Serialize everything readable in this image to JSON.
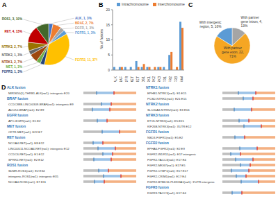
{
  "chart_data": [
    {
      "type": "pie",
      "panel_label": "A",
      "categories": [
        "ALK",
        "BRAF",
        "EGFR",
        "FGFR1",
        "FGFR2",
        "FGFR3",
        "MET",
        "NTRK1",
        "NTRK2",
        "NTRK3",
        "RET",
        "ROS1"
      ],
      "values": [
        1,
        2,
        1,
        1,
        11,
        1,
        1,
        2,
        1,
        2,
        4,
        3
      ],
      "value_labels": [
        "ALK, 1, 3%",
        "BRAF, 2, 7%",
        "EGFR, 1, 3%",
        "FGFR1, 1, 3%",
        "FGFR2, 11, 37%",
        "FGFR3, 1, 3%",
        "MET, 1, 3%",
        "NTRK1, 2, 7%",
        "NTRK2, 1, 3%",
        "NTRK3, 2, 7%",
        "RET, 4, 13%",
        "ROS1, 3, 10%"
      ],
      "colors": [
        "#4472C4",
        "#ED7D31",
        "#A5A5A5",
        "#5B9BD5",
        "#FFC000",
        "#264478",
        "#70AD47",
        "#9E480E",
        "#636363",
        "#997300",
        "#C00000",
        "#43682B"
      ],
      "data_labels": true
    },
    {
      "type": "bar",
      "panel_label": "B",
      "ylabel": "No.of fusions",
      "categories": [
        "ALK",
        "BRAF",
        "EGFR",
        "MET",
        "RET",
        "ROS1",
        "NTRK1",
        "NTRK2",
        "NTRK3",
        "FGFR1",
        "FGFR2",
        "FGFR3",
        "Total"
      ],
      "series": [
        {
          "name": "Intrachromosome",
          "color": "#5B9BD5",
          "values": [
            1,
            1,
            1,
            1,
            3,
            1,
            1,
            0,
            1,
            1,
            5,
            0,
            16
          ]
        },
        {
          "name": "Interchromosome",
          "color": "#ED7D31",
          "values": [
            0,
            1,
            0,
            0,
            1,
            2,
            1,
            1,
            1,
            0,
            6,
            1,
            14
          ]
        }
      ],
      "ylim": [
        0,
        20
      ],
      "yticks": [
        0,
        5,
        10,
        15,
        20
      ],
      "legend": "top",
      "grid": false
    },
    {
      "type": "pie",
      "panel_label": "C",
      "categories": [
        "With partner gene intron",
        "With partner gene exon",
        "With intergenic region"
      ],
      "values": [
        4,
        22,
        5
      ],
      "value_labels": [
        "With partner gene intron, 4, 13%",
        "With partner gene exon, 22, 71%",
        "With intergenic region, 5, 16%"
      ],
      "colors": [
        "#A5A5A5",
        "#F5A623",
        "#5B9BD5"
      ],
      "data_labels": true
    }
  ],
  "fusion_diagram": {
    "panel_label": "D",
    "columns": [
      [
        {
          "heading": "ALK fusion",
          "entries": [
            "MIR3650(1)-THRB1-ALK(n=1): intergenic:E20"
          ]
        },
        {
          "heading": "BRAF fusion",
          "entries": [
            "CCDC88B-LINC00309-BRAF(n=1): intergenic:E9",
            "ADCK2-BRAF(n=1): E2:E9"
          ]
        },
        {
          "heading": "EGFR fusion",
          "entries": [
            "APC-EGFR(n=1): E1:E2"
          ]
        },
        {
          "heading": "MET fusion",
          "entries": [
            "CFTR-MET(n=1): E22:E7"
          ]
        },
        {
          "heading": "RET fusion",
          "entries": [
            "NCOA4-RET(n=1): E8:E12",
            "LINC00511-NCOA4-RET(n=1): intergenic:E12",
            "CCDC6-RET(n=1): E1:E12",
            "SPRR2-RET(n=1): E2:E12"
          ]
        },
        {
          "heading": "ROS1 fusion",
          "entries": [
            "SDMR-ROS1(n=1): E2:E34",
            "intergenic-ROS1(n=1): intergenic:E35",
            "NCOA4-ROS1(n=1): E7:E11"
          ]
        }
      ],
      [
        {
          "heading": "NTRK1 fusion",
          "entries": [
            "EPHB1-NTRK1(n=1): E1:E15",
            "PCSD-NTRK1(n=1): E21:E15"
          ]
        },
        {
          "heading": "NTRK2 fusion",
          "entries": [
            "SLC30A3-NTRK2(n=1): E3:E16"
          ]
        },
        {
          "heading": "NTRK3 fusion",
          "entries": [
            "ETV6-NTRK3(n=1): E5:E15",
            "KIF26B-NTRK3(n=1): 3'UTR:E12"
          ]
        },
        {
          "heading": "FGFR1 fusion",
          "entries": [
            "NSD3-FGFR1(n=1): E5:E2"
          ]
        },
        {
          "heading": "FGFR2 fusion",
          "entries": [
            "EPHA6-FGFR2(n=1): E2:E9",
            "FGFR2-WDR11(n=1): E17:intergenic",
            "FGFR2-TACC3(n=1): E17:E4",
            "FGFR2-MKI67(n=1): E17:E5",
            "FGFR2-CTBP1(n=1): E17:E17",
            "FGFR2-CRIM1(n=1): E17:E4",
            "FGFR2-BTBD16-PLEKHA1(n=1): 3'UTR:intergenic"
          ]
        },
        {
          "heading": "FGFR3 fusion",
          "entries": [
            "FGFR3-TACC3(n=1): E17:E4"
          ]
        }
      ]
    ]
  }
}
